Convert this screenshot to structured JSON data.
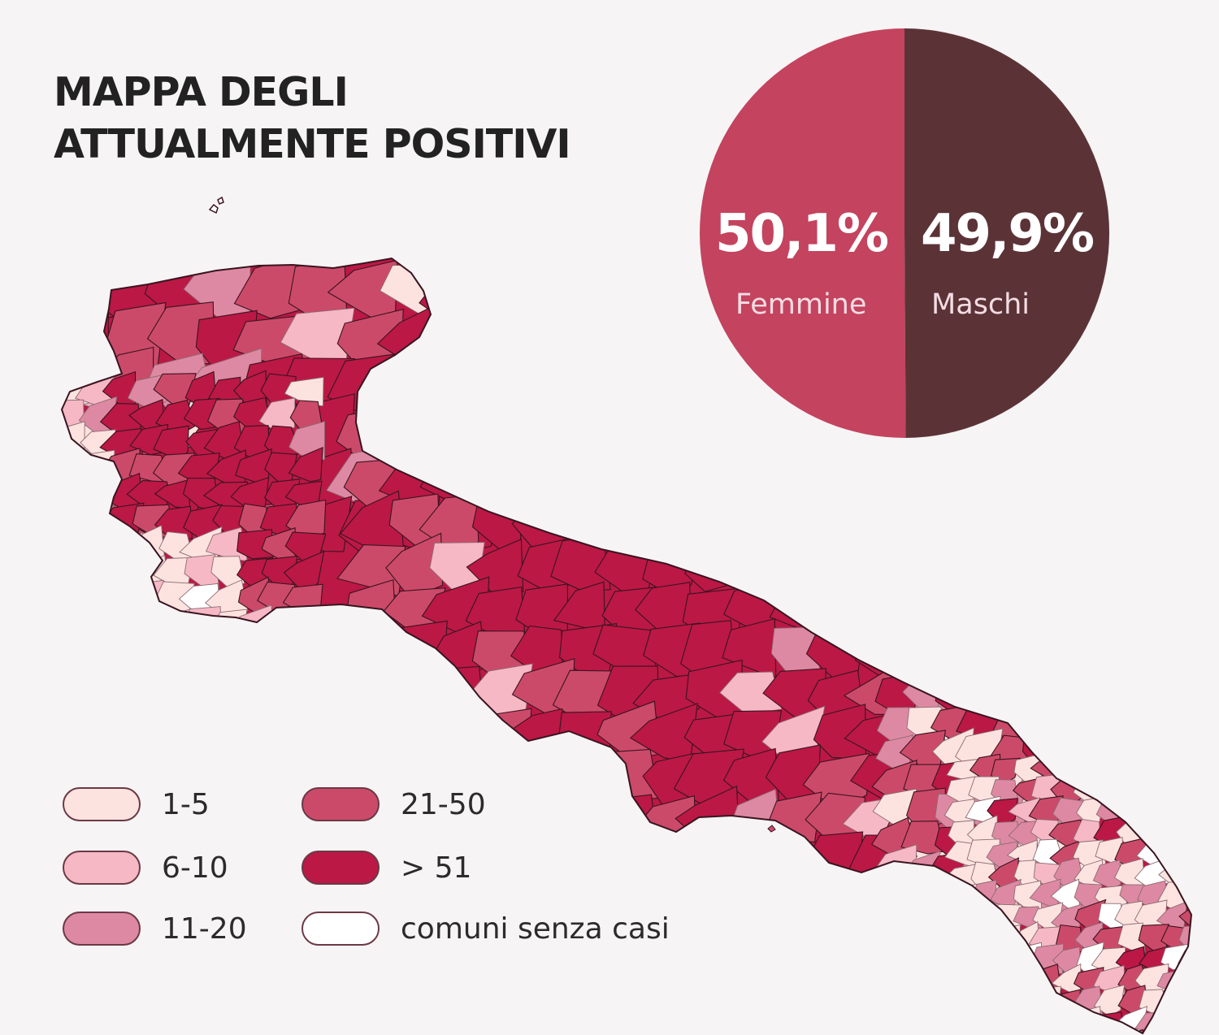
{
  "title": {
    "line1": "MAPPA DEGLI",
    "line2": "ATTUALMENTE POSITIVI"
  },
  "gender_split": {
    "femmine": {
      "value": 50.1,
      "percent_label": "50,1%",
      "label": "Femmine",
      "color": "#c4435f"
    },
    "maschi": {
      "value": 49.9,
      "percent_label": "49,9%",
      "label": "Maschi",
      "color": "#5b3337"
    }
  },
  "legend": {
    "items": [
      {
        "label": "1-5",
        "color": "#fce3df"
      },
      {
        "label": "6-10",
        "color": "#f6b8c5"
      },
      {
        "label": "11-20",
        "color": "#de89a3"
      },
      {
        "label": "21-50",
        "color": "#cc4a69"
      },
      {
        "label": "> 51",
        "color": "#bb1845"
      },
      {
        "label": "comuni senza casi",
        "color": "#ffffff"
      }
    ]
  },
  "map": {
    "region": "Puglia",
    "border_color": "#3a1420",
    "light_border_color": "#8c6a72"
  }
}
